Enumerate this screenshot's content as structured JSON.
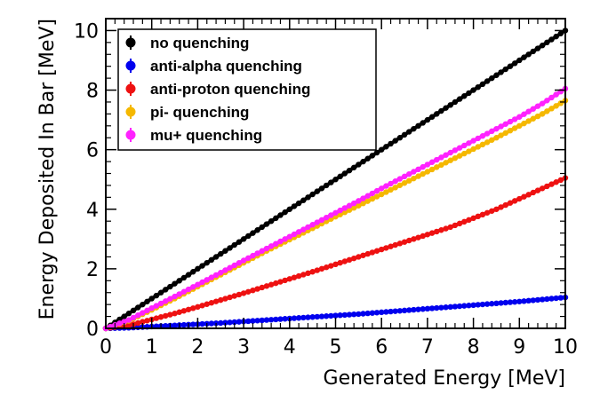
{
  "chart_data": {
    "type": "line",
    "xlabel": "Generated Energy [MeV]",
    "ylabel": "Energy Deposited In Bar [MeV]",
    "xlim": [
      0,
      10
    ],
    "ylim": [
      0,
      10.4
    ],
    "x_ticks": [
      "0",
      "1",
      "2",
      "3",
      "4",
      "5",
      "6",
      "7",
      "8",
      "9",
      "10"
    ],
    "y_ticks": [
      "0",
      "2",
      "4",
      "6",
      "8",
      "10"
    ],
    "grid": false,
    "legend_position": "top-left",
    "x": [
      0,
      0.5,
      1,
      1.5,
      2,
      2.5,
      3,
      3.5,
      4,
      4.5,
      5,
      5.5,
      6,
      6.5,
      7,
      7.5,
      8,
      8.5,
      9,
      9.5,
      10
    ],
    "series": [
      {
        "name": "no quenching",
        "color": "#000000",
        "values": [
          0,
          0.5,
          1,
          1.5,
          2,
          2.5,
          3,
          3.5,
          4,
          4.5,
          5,
          5.5,
          6,
          6.5,
          7,
          7.5,
          8,
          8.5,
          9,
          9.5,
          10
        ]
      },
      {
        "name": "anti-alpha quenching",
        "color": "#0000ee",
        "values": [
          0,
          0.02,
          0.06,
          0.1,
          0.14,
          0.18,
          0.23,
          0.28,
          0.33,
          0.38,
          0.43,
          0.48,
          0.54,
          0.6,
          0.66,
          0.72,
          0.78,
          0.84,
          0.9,
          0.97,
          1.04
        ]
      },
      {
        "name": "anti-proton quenching",
        "color": "#ee1111",
        "values": [
          0,
          0.1,
          0.3,
          0.5,
          0.72,
          0.95,
          1.18,
          1.42,
          1.66,
          1.9,
          2.15,
          2.4,
          2.65,
          2.9,
          3.15,
          3.4,
          3.7,
          4.0,
          4.35,
          4.7,
          5.05
        ]
      },
      {
        "name": "pi- quenching",
        "color": "#f5b800",
        "values": [
          0,
          0.25,
          0.62,
          1.0,
          1.4,
          1.8,
          2.2,
          2.6,
          2.98,
          3.36,
          3.75,
          4.12,
          4.5,
          4.88,
          5.26,
          5.64,
          6.02,
          6.4,
          6.8,
          7.2,
          7.65
        ]
      },
      {
        "name": "mu+ quenching",
        "color": "#ff22ff",
        "values": [
          0,
          0.28,
          0.68,
          1.07,
          1.47,
          1.87,
          2.28,
          2.68,
          3.08,
          3.48,
          3.88,
          4.28,
          4.7,
          5.1,
          5.5,
          5.9,
          6.3,
          6.7,
          7.1,
          7.55,
          8.05
        ]
      }
    ]
  }
}
